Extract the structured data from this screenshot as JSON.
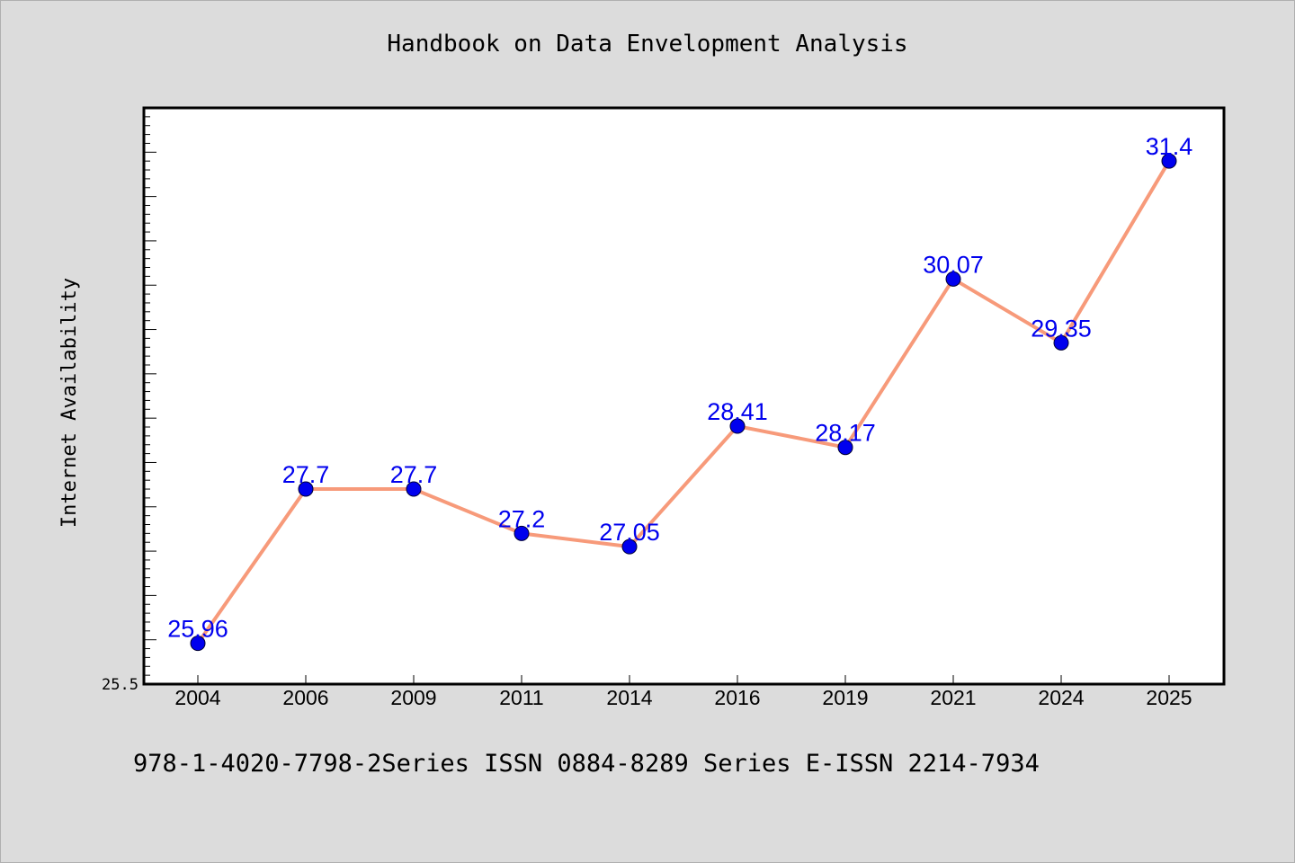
{
  "chart_data": {
    "type": "line",
    "title": "Handbook on Data Envelopment Analysis",
    "xlabel": "",
    "ylabel": "Internet Availability",
    "categories": [
      "2004",
      "2006",
      "2009",
      "2011",
      "2014",
      "2016",
      "2019",
      "2021",
      "2024",
      "2025"
    ],
    "values": [
      25.96,
      27.7,
      27.7,
      27.2,
      27.05,
      28.41,
      28.17,
      30.07,
      29.35,
      31.4
    ],
    "data_labels": [
      "25.96",
      "27.7",
      "27.7",
      "27.2",
      "27.05",
      "28.41",
      "28.17",
      "30.07",
      "29.35",
      "31.4"
    ],
    "ylim": [
      25.5,
      32.0
    ],
    "y_tick_labels": [
      "25.5"
    ],
    "grid": false,
    "legend": "none",
    "line_color": "#f79a7a",
    "marker_color": "#0000ee",
    "label_color": "#0000ee"
  },
  "footer": "978-1-4020-7798-2Series ISSN 0884-8289 Series E-ISSN 2214-7934"
}
